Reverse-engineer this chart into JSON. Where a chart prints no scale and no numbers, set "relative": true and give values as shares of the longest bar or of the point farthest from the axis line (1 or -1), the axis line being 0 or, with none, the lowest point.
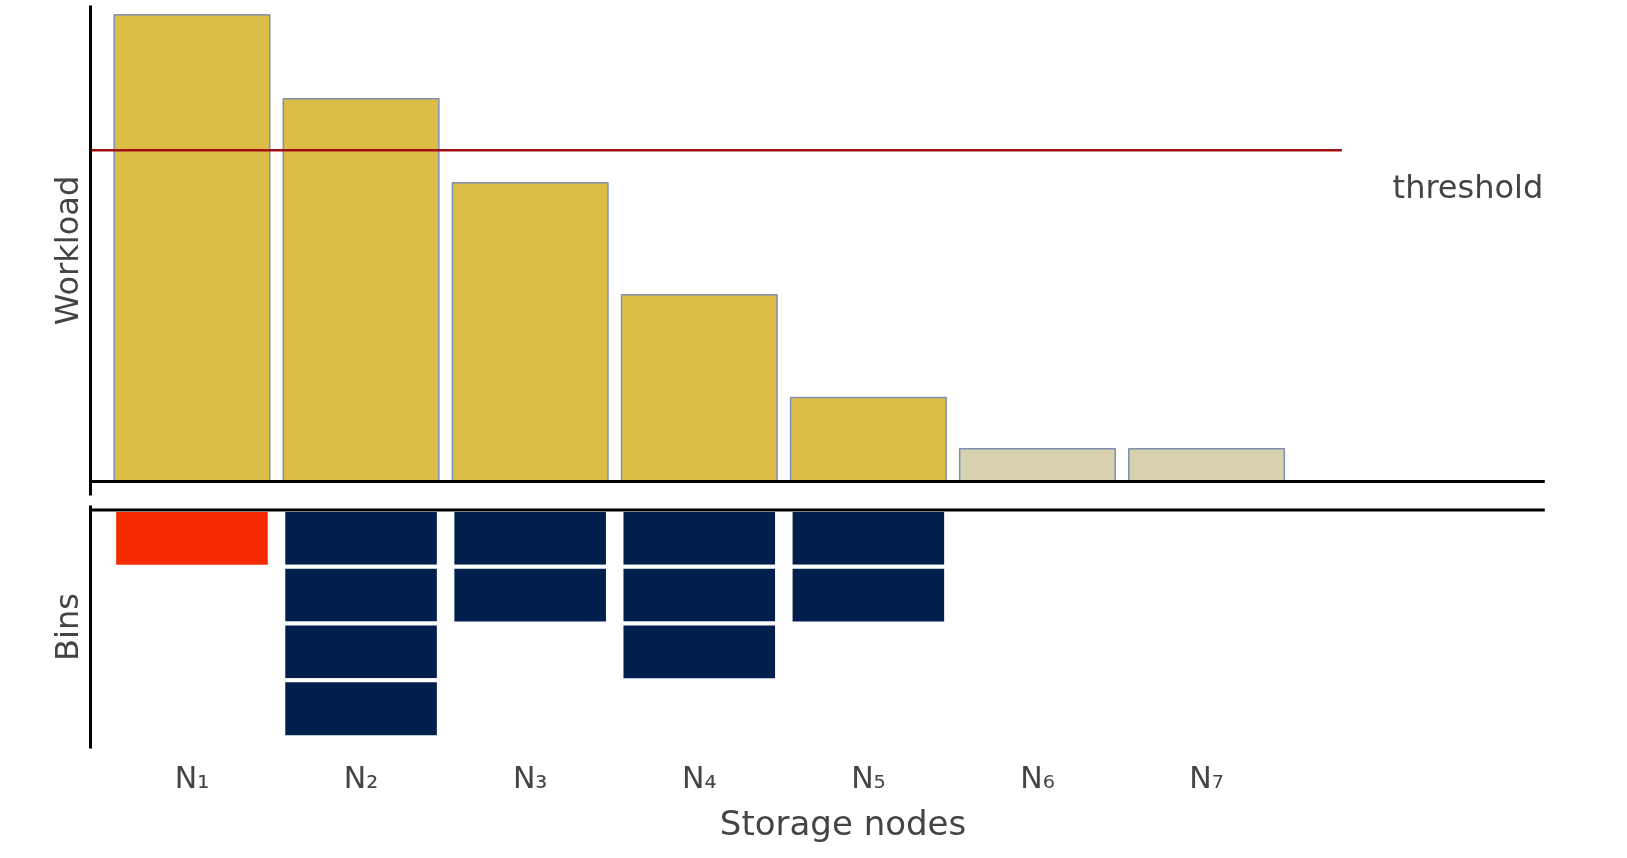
{
  "chart_data": [
    {
      "type": "bar",
      "ylabel": "Workload",
      "relative": true,
      "tick_labels": false,
      "categories": [
        null,
        null,
        null,
        null,
        null,
        null,
        null
      ],
      "values": [
        1,
        0.82,
        0.64,
        0.4,
        0.18,
        0.07,
        0.07
      ],
      "colors": [
        "#dcbd48",
        "#dcbd48",
        "#dcbd48",
        "#dcbd48",
        "#dcbd48",
        "#d8d1b0",
        "#d8d1b0"
      ],
      "ref_lines": [
        {
          "axis": "y",
          "value": 0.71,
          "label": "threshold",
          "color": "#a01010"
        }
      ]
    },
    {
      "type": "bar",
      "ylabel": "Bins",
      "xlabel": "Storage nodes",
      "relative": true,
      "stacked": true,
      "tick_labels": "x",
      "categories": [
        "N₁",
        "N₂",
        "N₃",
        "N₄",
        "N₅",
        "N₆",
        "N₇"
      ],
      "series": [
        {
          "values": [
            -0.25,
            -0.25,
            -0.25,
            -0.25,
            -0.25,
            null,
            null
          ],
          "colors": [
            "#f52a00",
            "#001f4d",
            "#001f4d",
            "#001f4d",
            "#001f4d",
            "#001f4d",
            "#001f4d"
          ]
        },
        {
          "values": [
            null,
            -0.25,
            -0.25,
            -0.25,
            -0.25,
            null,
            null
          ],
          "color": "#001f4d"
        },
        {
          "values": [
            null,
            -0.25,
            null,
            -0.25,
            null,
            null,
            null
          ],
          "color": "#001f4d"
        },
        {
          "values": [
            null,
            -0.25,
            null,
            null,
            null,
            null,
            null
          ],
          "color": "#001f4d"
        }
      ]
    }
  ]
}
